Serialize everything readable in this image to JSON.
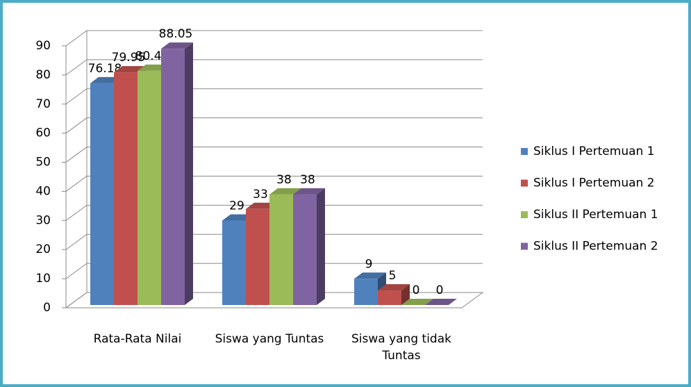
{
  "chart_data": {
    "type": "bar3d",
    "categories": [
      "Rata-Rata Nilai",
      "Siswa yang Tuntas",
      "Siswa yang tidak Tuntas"
    ],
    "series": [
      {
        "name": "Siklus I Pertemuan 1",
        "color": "#4f81bd",
        "values": [
          76.18,
          29,
          9
        ]
      },
      {
        "name": "Siklus I Pertemuan 2",
        "color": "#c0504d",
        "values": [
          79.95,
          33,
          5
        ]
      },
      {
        "name": "Siklus II Pertemuan 1",
        "color": "#9bbb59",
        "values": [
          80.49,
          38,
          0
        ]
      },
      {
        "name": "Siklus II Pertemuan 2",
        "color": "#8064a2",
        "values": [
          88.05,
          38,
          0
        ]
      }
    ],
    "ylim": [
      0,
      90
    ],
    "yticks": [
      0,
      10,
      20,
      30,
      40,
      50,
      60,
      70,
      80,
      90
    ],
    "grid": true,
    "legend": "right"
  }
}
